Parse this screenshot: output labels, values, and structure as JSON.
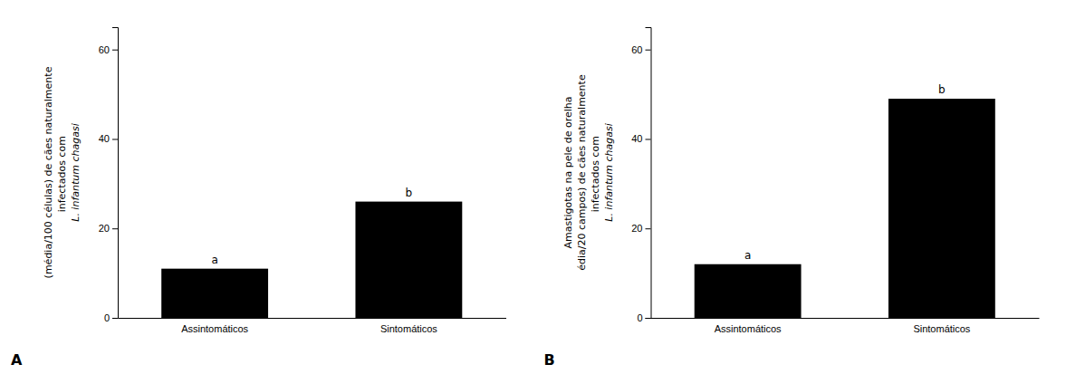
{
  "chart_data": [
    {
      "type": "bar",
      "title": "A",
      "categories": [
        "Assintomáticos",
        "Sintomáticos"
      ],
      "values": [
        11,
        26
      ],
      "annotations": [
        "a",
        "b"
      ],
      "ylabel": [
        "(média/100 células) de cães naturalmente",
        "infectados com ",
        "L. infantum chagasi"
      ],
      "color": "#000000",
      "ylim": [
        0,
        65
      ],
      "yticks": [
        0,
        20,
        40,
        60
      ]
    },
    {
      "type": "bar",
      "title": "B",
      "categories": [
        "Assintomáticos",
        "Sintomáticos"
      ],
      "values": [
        12,
        49
      ],
      "annotations": [
        "a",
        "b"
      ],
      "ylabel": [
        "Amastigotas na pele de orelha",
        "édia/20 campos) de cães naturalmente",
        "infectados com ",
        "L. infantum chagasi"
      ],
      "color": "#000000",
      "ylim": [
        0,
        65
      ],
      "yticks": [
        0,
        20,
        40,
        60
      ]
    }
  ]
}
